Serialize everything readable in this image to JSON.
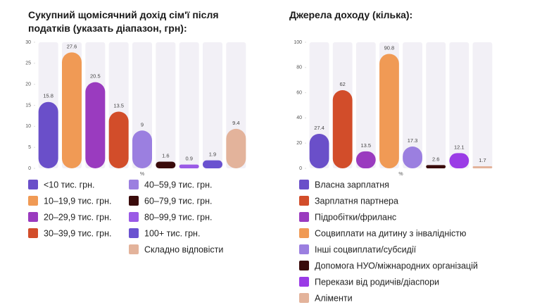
{
  "chart_data": [
    {
      "type": "bar",
      "title": "Сукупний щомісячний дохід сім'ї після податків (указать діапазон, грн):",
      "categories": [
        "<10 тис. грн.",
        "10–19,9 тис. грн.",
        "20–29,9 тис. грн.",
        "30–39,9 тис. грн.",
        "40–59,9 тис. грн.",
        "60–79,9 тис. грн.",
        "80–99,9 тис. грн.",
        "100+ тис. грн.",
        "Складно відповісти"
      ],
      "values": [
        15.8,
        27.6,
        20.5,
        13.5,
        9,
        1.6,
        0.9,
        1.9,
        9.4
      ],
      "colors": [
        "#6a4fc9",
        "#f09a55",
        "#9a3bbf",
        "#d24d2a",
        "#9b7fe0",
        "#3a0b0b",
        "#9a5ae6",
        "#6a52d0",
        "#e3b39b"
      ],
      "x_label": "%",
      "ylim": [
        0,
        30
      ],
      "yticks": [
        0,
        5,
        10,
        15,
        20,
        25,
        30
      ]
    },
    {
      "type": "bar",
      "title": "Джерела доходу (кілька):",
      "categories": [
        "Власна зарплатня",
        "Зарплатня партнера",
        "Підробітки/фриланс",
        "Соцвиплати на дитину з інвалідністю",
        "Інші соцвиплати/субсидії",
        "Допомога НУО/міжнародних організацій",
        "Перекази від родичів/діаспори",
        "Аліменти"
      ],
      "values": [
        27.4,
        62,
        13.5,
        90.8,
        17.3,
        2.6,
        12.1,
        1.7
      ],
      "colors": [
        "#6a4fc9",
        "#d24d2a",
        "#9a3bbf",
        "#f09a55",
        "#9b7fe0",
        "#3a0b0b",
        "#9a3be6",
        "#e3b39b"
      ],
      "x_label": "%",
      "ylim": [
        0,
        100
      ],
      "yticks": [
        0,
        20,
        40,
        60,
        80,
        100
      ]
    }
  ]
}
